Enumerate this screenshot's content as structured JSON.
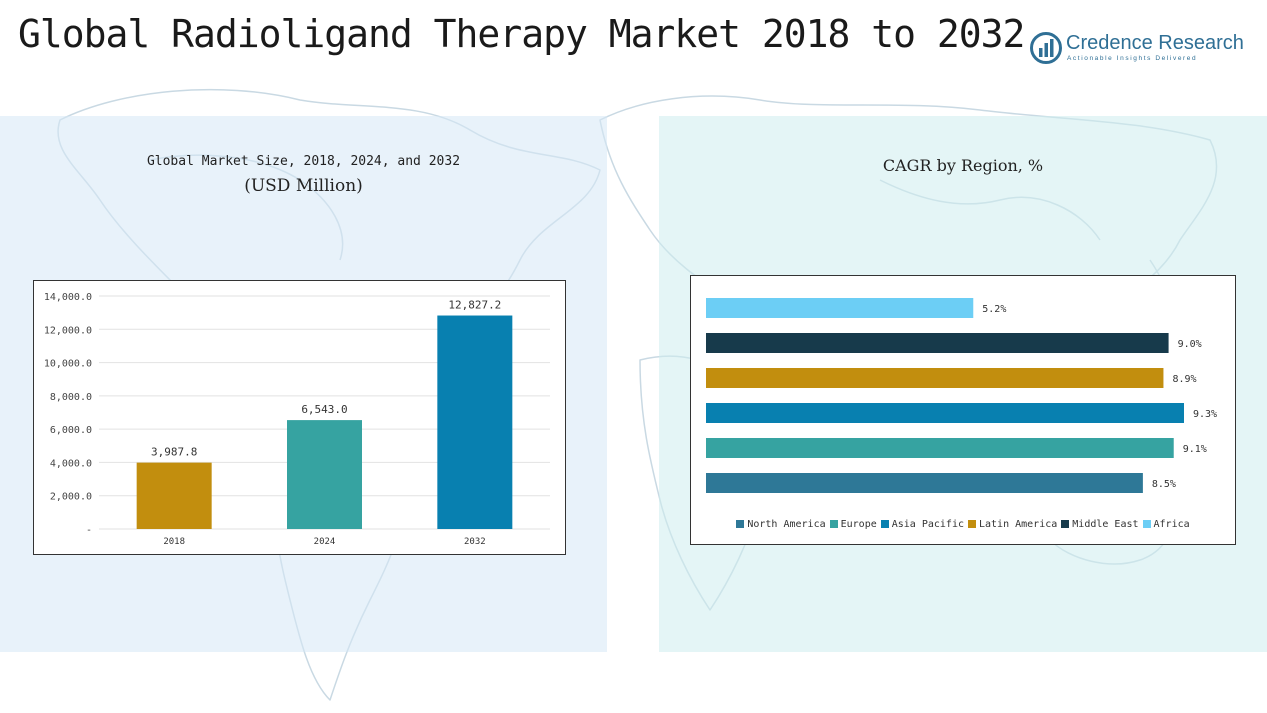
{
  "page": {
    "title": "Global Radioligand Therapy Market 2018 to 2032"
  },
  "logo": {
    "name": "Credence Research",
    "tagline": "Actionable Insights Delivered",
    "icon": "bar-chart-logo-icon",
    "color": "#2f6f95"
  },
  "chart_data": [
    {
      "type": "bar",
      "title": "Global Market Size, 2018, 2024, and 2032",
      "subtitle": "(USD Million)",
      "categories": [
        "2018",
        "2024",
        "2032"
      ],
      "values": [
        3987.8,
        6543.0,
        12827.2
      ],
      "value_labels": [
        "3,987.8",
        "6,543.0",
        "12,827.2"
      ],
      "colors": [
        "#c28e0e",
        "#36a3a1",
        "#0880b0"
      ],
      "ylim": [
        0,
        14000
      ],
      "yticks": [
        0,
        2000,
        4000,
        6000,
        8000,
        10000,
        12000,
        14000
      ],
      "ytick_labels": [
        "-",
        "2,000.0",
        "4,000.0",
        "6,000.0",
        "8,000.0",
        "10,000.0",
        "12,000.0",
        "14,000.0"
      ],
      "grid": true,
      "xlabel": "",
      "ylabel": ""
    },
    {
      "type": "bar",
      "orientation": "horizontal",
      "title": "CAGR by Region, %",
      "categories": [
        "North America",
        "Europe",
        "Asia Pacific",
        "Latin America",
        "Middle East",
        "Africa"
      ],
      "values": [
        8.5,
        9.1,
        9.3,
        8.9,
        9.0,
        5.2
      ],
      "value_labels": [
        "8.5%",
        "9.1%",
        "9.3%",
        "8.9%",
        "9.0%",
        "5.2%"
      ],
      "colors": [
        "#2e7897",
        "#36a3a1",
        "#0880b0",
        "#c28e0e",
        "#173a4b",
        "#6ccef5"
      ],
      "xlim": [
        0,
        9.3
      ],
      "grid": false,
      "legend": "bottom"
    }
  ]
}
